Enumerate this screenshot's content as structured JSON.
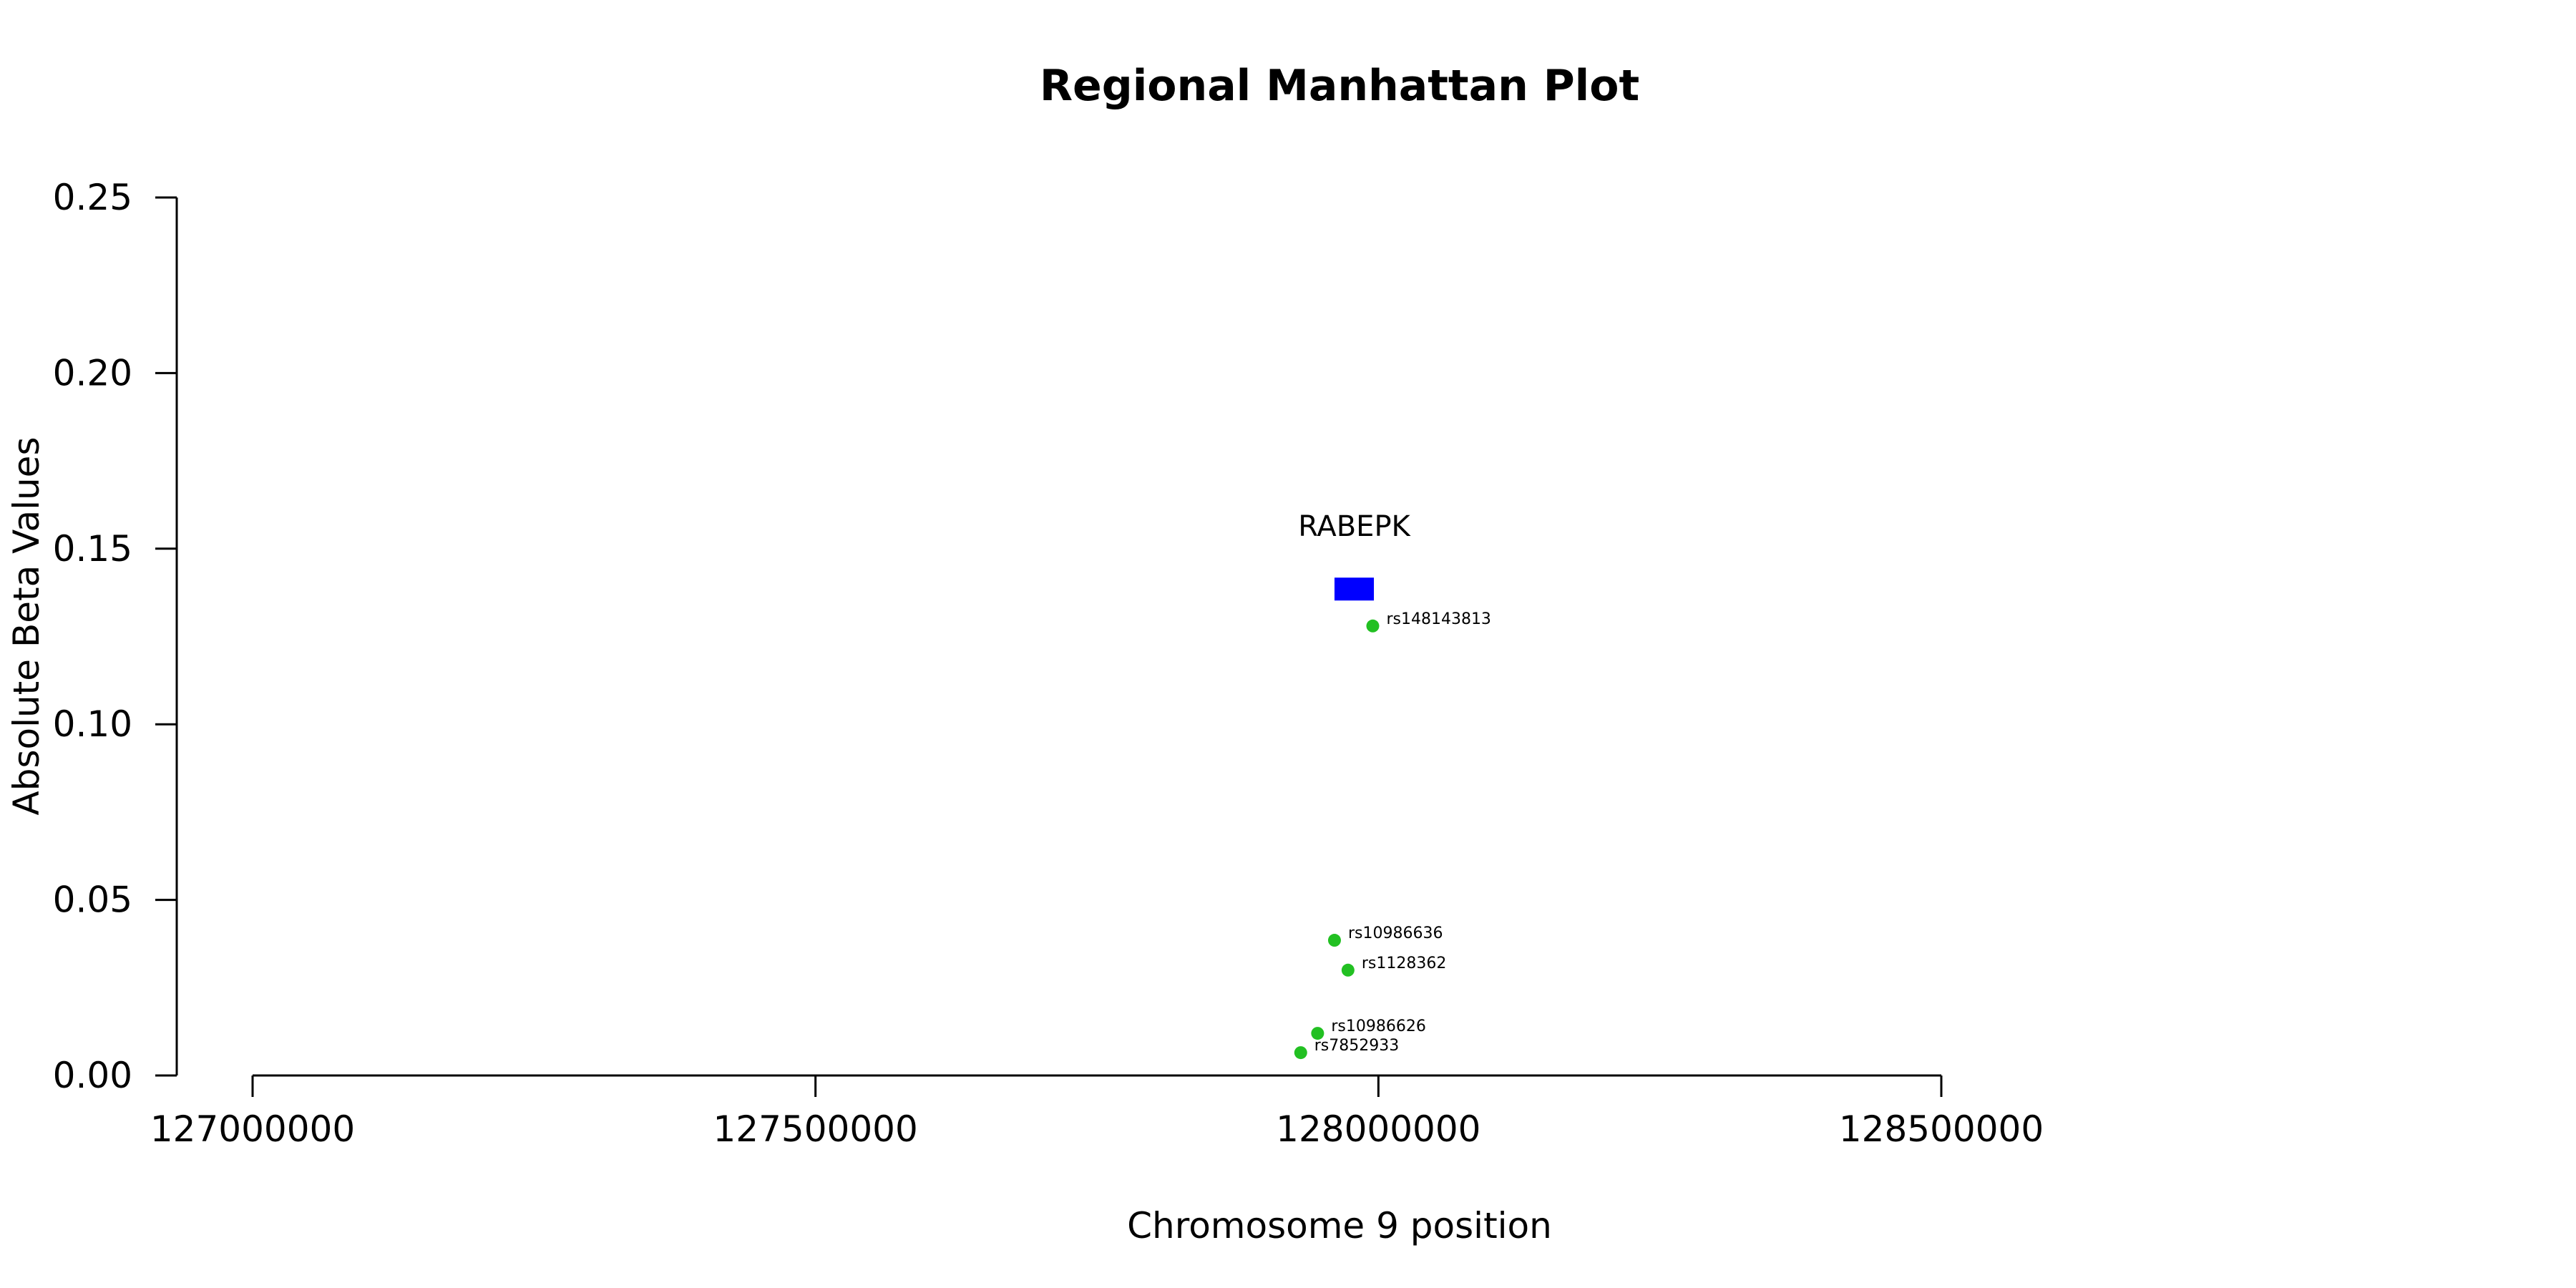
{
  "chart_data": {
    "type": "scatter",
    "title": "Regional Manhattan Plot",
    "xlabel": "Chromosome 9 position",
    "ylabel": "Absolute Beta Values",
    "xlim": [
      127000000,
      128500000
    ],
    "ylim": [
      0.0,
      0.25
    ],
    "x_ticks": [
      127000000,
      127500000,
      128000000,
      128500000
    ],
    "x_tick_labels": [
      "127000000",
      "127500000",
      "128000000",
      "128500000"
    ],
    "y_ticks": [
      0.0,
      0.05,
      0.1,
      0.15,
      0.2,
      0.25
    ],
    "y_tick_labels": [
      "0.00",
      "0.05",
      "0.10",
      "0.15",
      "0.20",
      "0.25"
    ],
    "grid": false,
    "point_color": "#22c022",
    "points": [
      {
        "label": "rs148143813",
        "x": 127995000,
        "y": 0.128
      },
      {
        "label": "rs10986636",
        "x": 127961000,
        "y": 0.0385
      },
      {
        "label": "rs1128362",
        "x": 127973000,
        "y": 0.03
      },
      {
        "label": "rs10986626",
        "x": 127946000,
        "y": 0.012
      },
      {
        "label": "rs7852933",
        "x": 127931000,
        "y": 0.0065
      }
    ],
    "genes": [
      {
        "name": "RABEPK",
        "start": 127961000,
        "end": 127996000,
        "y": 0.1385,
        "color": "#0000ff"
      }
    ]
  }
}
